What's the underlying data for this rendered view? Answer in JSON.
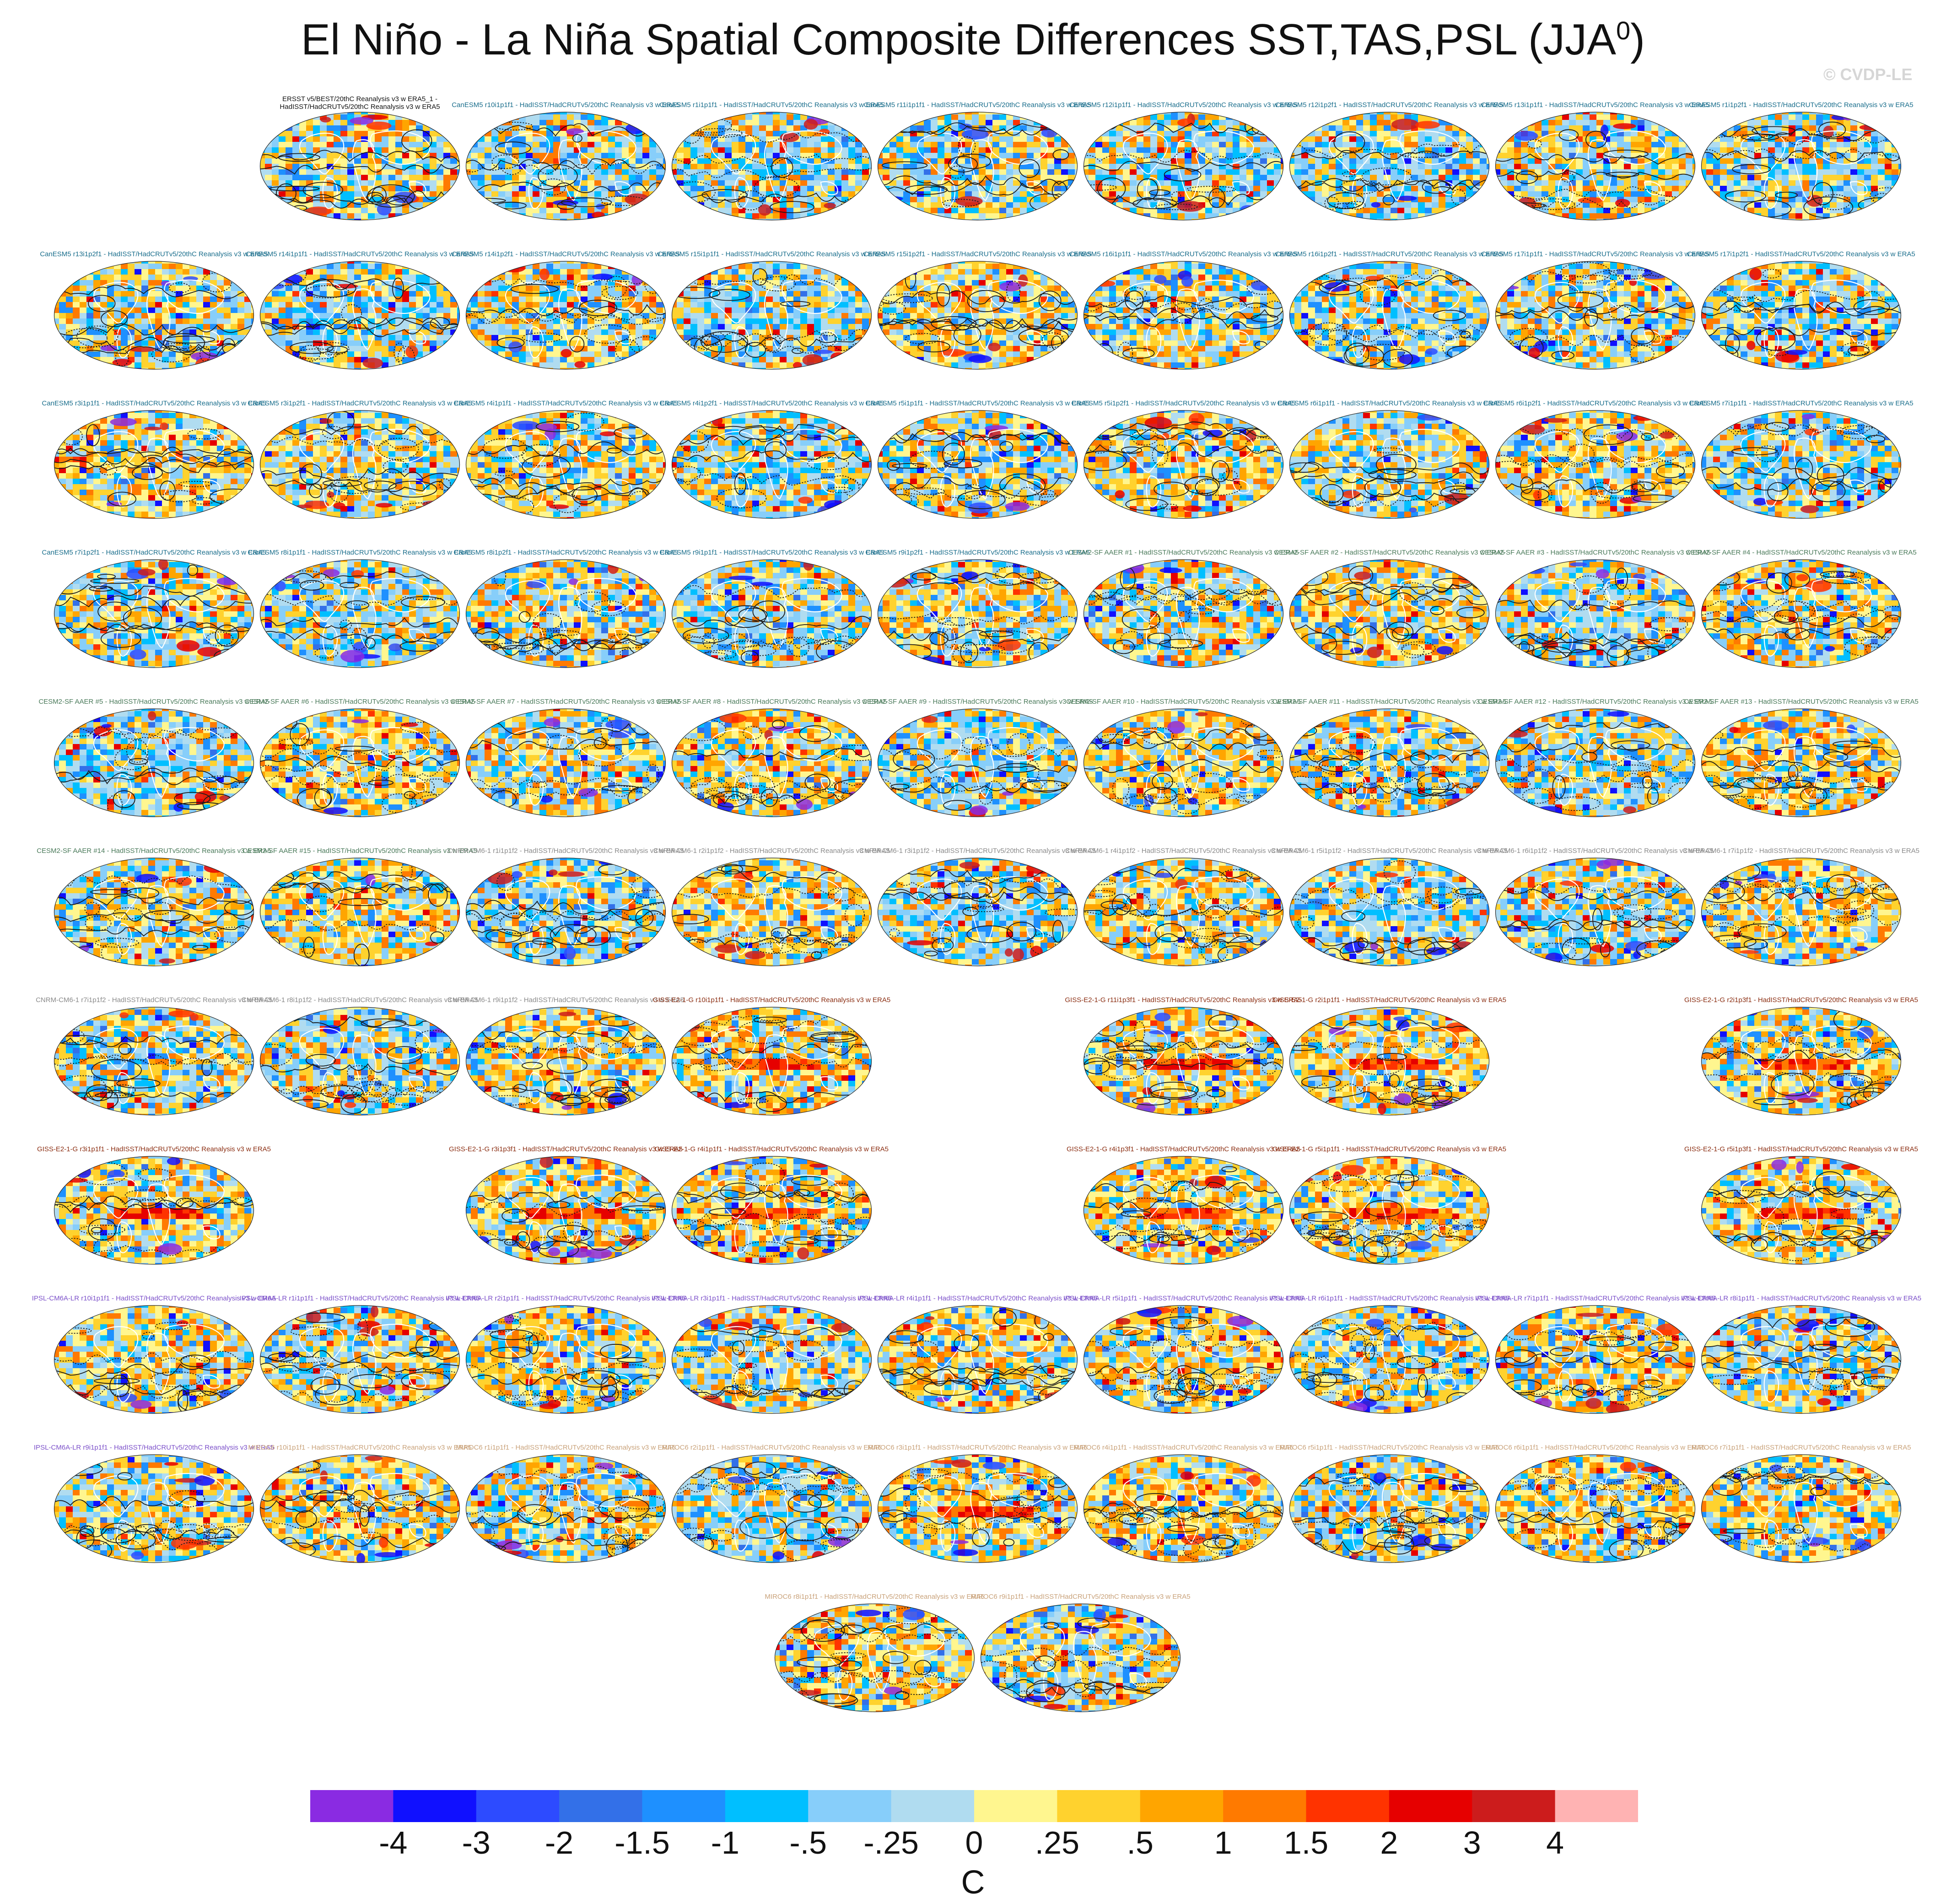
{
  "title": "El Niño - La Niña Spatial Composite Differences SST,TAS,PSL (JJA",
  "title_superscript": "0",
  "title_close": ")",
  "watermark": "© CVDP-LE",
  "chart_data": {
    "type": "heatmap",
    "projection": "robinson",
    "contours": "sea level pressure (solid positive, dashed negative)",
    "colorbar": {
      "unit": "C",
      "labels": [
        "-4",
        "-3",
        "-2",
        "-1.5",
        "-1",
        "-.5",
        "-.25",
        "0",
        ".25",
        ".5",
        "1",
        "1.5",
        "2",
        "3",
        "4"
      ],
      "colors": [
        "#8a2be2",
        "#1010ff",
        "#2d4bff",
        "#3370e8",
        "#1e90ff",
        "#00bfff",
        "#87cefa",
        "#b0dcf0",
        "#fff68f",
        "#ffd22e",
        "#ffa500",
        "#ff7a00",
        "#ff3300",
        "#e60000",
        "#cc1c1c",
        "#ffb3b3"
      ]
    },
    "panels": [
      {
        "label": "ERSST v5/BEST/20thC Reanalysis v3 w ERA5_1 -\nHadISST/HadCRUTv5/20thC Reanalysis v3 w ERA5",
        "row": 0,
        "col": 1,
        "color": "#111111",
        "tone": "obs"
      },
      {
        "label": "CanESM5 r10i1p1f1 - HadISST/HadCRUTv5/20thC Reanalysis v3 w ERA5",
        "row": 0,
        "col": 2,
        "color": "#1a6e8c",
        "tone": "cool"
      },
      {
        "label": "CanESM5 r1i1p1f1 - HadISST/HadCRUTv5/20thC Reanalysis v3 w ERA5",
        "row": 0,
        "col": 3,
        "color": "#1a6e8c",
        "tone": "cool"
      },
      {
        "label": "CanESM5 r11i1p1f1 - HadISST/HadCRUTv5/20thC Reanalysis v3 w ERA5",
        "row": 0,
        "col": 4,
        "color": "#1a6e8c",
        "tone": "mixed"
      },
      {
        "label": "CanESM5 r12i1p1f1 - HadISST/HadCRUTv5/20thC Reanalysis v3 w ERA5",
        "row": 0,
        "col": 5,
        "color": "#1a6e8c",
        "tone": "cool"
      },
      {
        "label": "CanESM5 r12i1p2f1 - HadISST/HadCRUTv5/20thC Reanalysis v3 w ERA5",
        "row": 0,
        "col": 6,
        "color": "#1a6e8c",
        "tone": "cool"
      },
      {
        "label": "CanESM5 r13i1p1f1 - HadISST/HadCRUTv5/20thC Reanalysis v3 w ERA5",
        "row": 0,
        "col": 7,
        "color": "#1a6e8c",
        "tone": "mixed"
      },
      {
        "label": "CanESM5 r1i1p2f1 - HadISST/HadCRUTv5/20thC Reanalysis v3 w ERA5",
        "row": 0,
        "col": 8,
        "color": "#1a6e8c",
        "tone": "cool"
      },
      {
        "label": "CanESM5 r13i1p2f1 - HadISST/HadCRUTv5/20thC Reanalysis v3 w ERA5",
        "row": 1,
        "col": 0,
        "color": "#1a6e8c",
        "tone": "mixed"
      },
      {
        "label": "CanESM5 r14i1p1f1 - HadISST/HadCRUTv5/20thC Reanalysis v3 w ERA5",
        "row": 1,
        "col": 1,
        "color": "#1a6e8c",
        "tone": "cool"
      },
      {
        "label": "CanESM5 r14i1p2f1 - HadISST/HadCRUTv5/20thC Reanalysis v3 w ERA5",
        "row": 1,
        "col": 2,
        "color": "#1a6e8c",
        "tone": "mixed"
      },
      {
        "label": "CanESM5 r15i1p1f1 - HadISST/HadCRUTv5/20thC Reanalysis v3 w ERA5",
        "row": 1,
        "col": 3,
        "color": "#1a6e8c",
        "tone": "cool"
      },
      {
        "label": "CanESM5 r15i1p2f1 - HadISST/HadCRUTv5/20thC Reanalysis v3 w ERA5",
        "row": 1,
        "col": 4,
        "color": "#1a6e8c",
        "tone": "warm"
      },
      {
        "label": "CanESM5 r16i1p1f1 - HadISST/HadCRUTv5/20thC Reanalysis v3 w ERA5",
        "row": 1,
        "col": 5,
        "color": "#1a6e8c",
        "tone": "mixed"
      },
      {
        "label": "CanESM5 r16i1p2f1 - HadISST/HadCRUTv5/20thC Reanalysis v3 w ERA5",
        "row": 1,
        "col": 6,
        "color": "#1a6e8c",
        "tone": "cool"
      },
      {
        "label": "CanESM5 r17i1p1f1 - HadISST/HadCRUTv5/20thC Reanalysis v3 w ERA5",
        "row": 1,
        "col": 7,
        "color": "#1a6e8c",
        "tone": "mixed"
      },
      {
        "label": "CanESM5 r17i1p2f1 - HadISST/HadCRUTv5/20thC Reanalysis v3 w ERA5",
        "row": 1,
        "col": 8,
        "color": "#1a6e8c",
        "tone": "cool"
      },
      {
        "label": "CanESM5 r3i1p1f1 - HadISST/HadCRUTv5/20thC Reanalysis v3 w ERA5",
        "row": 2,
        "col": 0,
        "color": "#1a6e8c",
        "tone": "warm"
      },
      {
        "label": "CanESM5 r3i1p2f1 - HadISST/HadCRUTv5/20thC Reanalysis v3 w ERA5",
        "row": 2,
        "col": 1,
        "color": "#1a6e8c",
        "tone": "mixed"
      },
      {
        "label": "CanESM5 r4i1p1f1 - HadISST/HadCRUTv5/20thC Reanalysis v3 w ERA5",
        "row": 2,
        "col": 2,
        "color": "#1a6e8c",
        "tone": "warm"
      },
      {
        "label": "CanESM5 r4i1p2f1 - HadISST/HadCRUTv5/20thC Reanalysis v3 w ERA5",
        "row": 2,
        "col": 3,
        "color": "#1a6e8c",
        "tone": "cool"
      },
      {
        "label": "CanESM5 r5i1p1f1 - HadISST/HadCRUTv5/20thC Reanalysis v3 w ERA5",
        "row": 2,
        "col": 4,
        "color": "#1a6e8c",
        "tone": "mixed"
      },
      {
        "label": "CanESM5 r5i1p2f1 - HadISST/HadCRUTv5/20thC Reanalysis v3 w ERA5",
        "row": 2,
        "col": 5,
        "color": "#1a6e8c",
        "tone": "warm"
      },
      {
        "label": "CanESM5 r6i1p1f1 - HadISST/HadCRUTv5/20thC Reanalysis v3 w ERA5",
        "row": 2,
        "col": 6,
        "color": "#1a6e8c",
        "tone": "mixed"
      },
      {
        "label": "CanESM5 r6i1p2f1 - HadISST/HadCRUTv5/20thC Reanalysis v3 w ERA5",
        "row": 2,
        "col": 7,
        "color": "#1a6e8c",
        "tone": "warm"
      },
      {
        "label": "CanESM5 r7i1p1f1 - HadISST/HadCRUTv5/20thC Reanalysis v3 w ERA5",
        "row": 2,
        "col": 8,
        "color": "#1a6e8c",
        "tone": "cool"
      },
      {
        "label": "CanESM5 r7i1p2f1 - HadISST/HadCRUTv5/20thC Reanalysis v3 w ERA5",
        "row": 3,
        "col": 0,
        "color": "#1a6e8c",
        "tone": "mixed"
      },
      {
        "label": "CanESM5 r8i1p1f1 - HadISST/HadCRUTv5/20thC Reanalysis v3 w ERA5",
        "row": 3,
        "col": 1,
        "color": "#1a6e8c",
        "tone": "cool"
      },
      {
        "label": "CanESM5 r8i1p2f1 - HadISST/HadCRUTv5/20thC Reanalysis v3 w ERA5",
        "row": 3,
        "col": 2,
        "color": "#1a6e8c",
        "tone": "mixed"
      },
      {
        "label": "CanESM5 r9i1p1f1 - HadISST/HadCRUTv5/20thC Reanalysis v3 w ERA5",
        "row": 3,
        "col": 3,
        "color": "#1a6e8c",
        "tone": "cool"
      },
      {
        "label": "CanESM5 r9i1p2f1 - HadISST/HadCRUTv5/20thC Reanalysis v3 w ERA5",
        "row": 3,
        "col": 4,
        "color": "#1a6e8c",
        "tone": "mixed"
      },
      {
        "label": "CESM2-SF AAER #1 - HadISST/HadCRUTv5/20thC Reanalysis v3 w ERA5",
        "row": 3,
        "col": 5,
        "color": "#4a7a5a",
        "tone": "mixed"
      },
      {
        "label": "CESM2-SF AAER #2 - HadISST/HadCRUTv5/20thC Reanalysis v3 w ERA5",
        "row": 3,
        "col": 6,
        "color": "#4a7a5a",
        "tone": "warm"
      },
      {
        "label": "CESM2-SF AAER #3 - HadISST/HadCRUTv5/20thC Reanalysis v3 w ERA5",
        "row": 3,
        "col": 7,
        "color": "#4a7a5a",
        "tone": "cool"
      },
      {
        "label": "CESM2-SF AAER #4 - HadISST/HadCRUTv5/20thC Reanalysis v3 w ERA5",
        "row": 3,
        "col": 8,
        "color": "#4a7a5a",
        "tone": "warm"
      },
      {
        "label": "CESM2-SF AAER #5 - HadISST/HadCRUTv5/20thC Reanalysis v3 w ERA5",
        "row": 4,
        "col": 0,
        "color": "#4a7a5a",
        "tone": "cool"
      },
      {
        "label": "CESM2-SF AAER #6 - HadISST/HadCRUTv5/20thC Reanalysis v3 w ERA5",
        "row": 4,
        "col": 1,
        "color": "#4a7a5a",
        "tone": "warm"
      },
      {
        "label": "CESM2-SF AAER #7 - HadISST/HadCRUTv5/20thC Reanalysis v3 w ERA5",
        "row": 4,
        "col": 2,
        "color": "#4a7a5a",
        "tone": "mixed"
      },
      {
        "label": "CESM2-SF AAER #8 - HadISST/HadCRUTv5/20thC Reanalysis v3 w ERA5",
        "row": 4,
        "col": 3,
        "color": "#4a7a5a",
        "tone": "warm"
      },
      {
        "label": "CESM2-SF AAER #9 - HadISST/HadCRUTv5/20thC Reanalysis v3 w ERA5",
        "row": 4,
        "col": 4,
        "color": "#4a7a5a",
        "tone": "cool"
      },
      {
        "label": "CESM2-SF AAER #10 - HadISST/HadCRUTv5/20thC Reanalysis v3 w ERA5",
        "row": 4,
        "col": 5,
        "color": "#4a7a5a",
        "tone": "warm"
      },
      {
        "label": "CESM2-SF AAER #11 - HadISST/HadCRUTv5/20thC Reanalysis v3 w ERA5",
        "row": 4,
        "col": 6,
        "color": "#4a7a5a",
        "tone": "mixed"
      },
      {
        "label": "CESM2-SF AAER #12 - HadISST/HadCRUTv5/20thC Reanalysis v3 w ERA5",
        "row": 4,
        "col": 7,
        "color": "#4a7a5a",
        "tone": "cool"
      },
      {
        "label": "CESM2-SF AAER #13 - HadISST/HadCRUTv5/20thC Reanalysis v3 w ERA5",
        "row": 4,
        "col": 8,
        "color": "#4a7a5a",
        "tone": "warm"
      },
      {
        "label": "CESM2-SF AAER #14 - HadISST/HadCRUTv5/20thC Reanalysis v3 w ERA5",
        "row": 5,
        "col": 0,
        "color": "#4a7a5a",
        "tone": "mixed"
      },
      {
        "label": "CESM2-SF AAER #15 - HadISST/HadCRUTv5/20thC Reanalysis v3 w ERA5",
        "row": 5,
        "col": 1,
        "color": "#4a7a5a",
        "tone": "warm"
      },
      {
        "label": "CNRM-CM6-1 r1i1p1f2 - HadISST/HadCRUTv5/20thC Reanalysis v3 w ERA5",
        "row": 5,
        "col": 2,
        "color": "#8a8a8a",
        "tone": "cool"
      },
      {
        "label": "CNRM-CM6-1 r2i1p1f2 - HadISST/HadCRUTv5/20thC Reanalysis v3 w ERA5",
        "row": 5,
        "col": 3,
        "color": "#8a8a8a",
        "tone": "warm"
      },
      {
        "label": "CNRM-CM6-1 r3i1p1f2 - HadISST/HadCRUTv5/20thC Reanalysis v3 w ERA5",
        "row": 5,
        "col": 4,
        "color": "#8a8a8a",
        "tone": "cool"
      },
      {
        "label": "CNRM-CM6-1 r4i1p1f2 - HadISST/HadCRUTv5/20thC Reanalysis v3 w ERA5",
        "row": 5,
        "col": 5,
        "color": "#8a8a8a",
        "tone": "warm"
      },
      {
        "label": "CNRM-CM6-1 r5i1p1f2 - HadISST/HadCRUTv5/20thC Reanalysis v3 w ERA5",
        "row": 5,
        "col": 6,
        "color": "#8a8a8a",
        "tone": "cool"
      },
      {
        "label": "CNRM-CM6-1 r6i1p1f2 - HadISST/HadCRUTv5/20thC Reanalysis v3 w ERA5",
        "row": 5,
        "col": 7,
        "color": "#8a8a8a",
        "tone": "cool"
      },
      {
        "label": "CNRM-CM6-1 r7i1p1f2 - HadISST/HadCRUTv5/20thC Reanalysis v3 w ERA5",
        "row": 5,
        "col": 8,
        "color": "#8a8a8a",
        "tone": "warm"
      },
      {
        "label": "CNRM-CM6-1 r7i1p1f2 - HadISST/HadCRUTv5/20thC Reanalysis v3 w ERA5",
        "row": 6,
        "col": 0,
        "color": "#8a8a8a",
        "tone": "mixed"
      },
      {
        "label": "CNRM-CM6-1 r8i1p1f2 - HadISST/HadCRUTv5/20thC Reanalysis v3 w ERA5",
        "row": 6,
        "col": 1,
        "color": "#8a8a8a",
        "tone": "cool"
      },
      {
        "label": "CNRM-CM6-1 r9i1p1f2 - HadISST/HadCRUTv5/20thC Reanalysis v3 w ERA5",
        "row": 6,
        "col": 2,
        "color": "#8a8a8a",
        "tone": "warm"
      },
      {
        "label": "GISS-E2-1-G r10i1p1f1 - HadISST/HadCRUTv5/20thC Reanalysis v3 w ERA5",
        "row": 6,
        "col": 3,
        "color": "#8b2e12",
        "tone": "nino"
      },
      {
        "label": "GISS-E2-1-G r11i1p3f1 - HadISST/HadCRUTv5/20thC Reanalysis v3 w ERA5",
        "row": 6,
        "col": 5,
        "color": "#8b2e12",
        "tone": "nino"
      },
      {
        "label": "GISS-E2-1-G r2i1p1f1 - HadISST/HadCRUTv5/20thC Reanalysis v3 w ERA5",
        "row": 6,
        "col": 6,
        "color": "#8b2e12",
        "tone": "nino"
      },
      {
        "label": "GISS-E2-1-G r2i1p3f1 - HadISST/HadCRUTv5/20thC Reanalysis v3 w ERA5",
        "row": 6,
        "col": 8,
        "color": "#8b2e12",
        "tone": "nino"
      },
      {
        "label": "GISS-E2-1-G r3i1p1f1 - HadISST/HadCRUTv5/20thC Reanalysis v3 w ERA5",
        "row": 7,
        "col": 0,
        "color": "#8b2e12",
        "tone": "nino"
      },
      {
        "label": "GISS-E2-1-G r3i1p3f1 - HadISST/HadCRUTv5/20thC Reanalysis v3 w ERA5",
        "row": 7,
        "col": 2,
        "color": "#8b2e12",
        "tone": "nino"
      },
      {
        "label": "GISS-E2-1-G r4i1p1f1 - HadISST/HadCRUTv5/20thC Reanalysis v3 w ERA5",
        "row": 7,
        "col": 3,
        "color": "#8b2e12",
        "tone": "nino"
      },
      {
        "label": "GISS-E2-1-G r4i1p3f1 - HadISST/HadCRUTv5/20thC Reanalysis v3 w ERA5",
        "row": 7,
        "col": 5,
        "color": "#8b2e12",
        "tone": "nino"
      },
      {
        "label": "GISS-E2-1-G r5i1p1f1 - HadISST/HadCRUTv5/20thC Reanalysis v3 w ERA5",
        "row": 7,
        "col": 6,
        "color": "#8b2e12",
        "tone": "nino"
      },
      {
        "label": "GISS-E2-1-G r5i1p3f1 - HadISST/HadCRUTv5/20thC Reanalysis v3 w ERA5",
        "row": 7,
        "col": 8,
        "color": "#8b2e12",
        "tone": "nino"
      },
      {
        "label": "IPSL-CM6A-LR r10i1p1f1 - HadISST/HadCRUTv5/20thC Reanalysis v3 w ERA5",
        "row": 8,
        "col": 0,
        "color": "#7b4fc9",
        "tone": "warm"
      },
      {
        "label": "IPSL-CM6A-LR r1i1p1f1 - HadISST/HadCRUTv5/20thC Reanalysis v3 w ERA5",
        "row": 8,
        "col": 1,
        "color": "#7b4fc9",
        "tone": "mixed"
      },
      {
        "label": "IPSL-CM6A-LR r2i1p1f1 - HadISST/HadCRUTv5/20thC Reanalysis v3 w ERA5",
        "row": 8,
        "col": 2,
        "color": "#7b4fc9",
        "tone": "warm"
      },
      {
        "label": "IPSL-CM6A-LR r3i1p1f1 - HadISST/HadCRUTv5/20thC Reanalysis v3 w ERA5",
        "row": 8,
        "col": 3,
        "color": "#7b4fc9",
        "tone": "mixed"
      },
      {
        "label": "IPSL-CM6A-LR r4i1p1f1 - HadISST/HadCRUTv5/20thC Reanalysis v3 w ERA5",
        "row": 8,
        "col": 4,
        "color": "#7b4fc9",
        "tone": "warm"
      },
      {
        "label": "IPSL-CM6A-LR r5i1p1f1 - HadISST/HadCRUTv5/20thC Reanalysis v3 w ERA5",
        "row": 8,
        "col": 5,
        "color": "#7b4fc9",
        "tone": "warm"
      },
      {
        "label": "IPSL-CM6A-LR r6i1p1f1 - HadISST/HadCRUTv5/20thC Reanalysis v3 w ERA5",
        "row": 8,
        "col": 6,
        "color": "#7b4fc9",
        "tone": "mixed"
      },
      {
        "label": "IPSL-CM6A-LR r7i1p1f1 - HadISST/HadCRUTv5/20thC Reanalysis v3 w ERA5",
        "row": 8,
        "col": 7,
        "color": "#7b4fc9",
        "tone": "warm"
      },
      {
        "label": "IPSL-CM6A-LR r8i1p1f1 - HadISST/HadCRUTv5/20thC Reanalysis v3 w ERA5",
        "row": 8,
        "col": 8,
        "color": "#7b4fc9",
        "tone": "mixed"
      },
      {
        "label": "IPSL-CM6A-LR r9i1p1f1 - HadISST/HadCRUTv5/20thC Reanalysis v3 w ERA5",
        "row": 9,
        "col": 0,
        "color": "#7b4fc9",
        "tone": "mixed"
      },
      {
        "label": "MIROC6 r10i1p1f1 - HadISST/HadCRUTv5/20thC Reanalysis v3 w ERA5",
        "row": 9,
        "col": 1,
        "color": "#c9a27a",
        "tone": "warm"
      },
      {
        "label": "MIROC6 r1i1p1f1 - HadISST/HadCRUTv5/20thC Reanalysis v3 w ERA5",
        "row": 9,
        "col": 2,
        "color": "#c9a27a",
        "tone": "mixed"
      },
      {
        "label": "MIROC6 r2i1p1f1 - HadISST/HadCRUTv5/20thC Reanalysis v3 w ERA5",
        "row": 9,
        "col": 3,
        "color": "#c9a27a",
        "tone": "cool"
      },
      {
        "label": "MIROC6 r3i1p1f1 - HadISST/HadCRUTv5/20thC Reanalysis v3 w ERA5",
        "row": 9,
        "col": 4,
        "color": "#c9a27a",
        "tone": "nino"
      },
      {
        "label": "MIROC6 r4i1p1f1 - HadISST/HadCRUTv5/20thC Reanalysis v3 w ERA5",
        "row": 9,
        "col": 5,
        "color": "#c9a27a",
        "tone": "warm"
      },
      {
        "label": "MIROC6 r5i1p1f1 - HadISST/HadCRUTv5/20thC Reanalysis v3 w ERA5",
        "row": 9,
        "col": 6,
        "color": "#c9a27a",
        "tone": "mixed"
      },
      {
        "label": "MIROC6 r6i1p1f1 - HadISST/HadCRUTv5/20thC Reanalysis v3 w ERA5",
        "row": 9,
        "col": 7,
        "color": "#c9a27a",
        "tone": "warm"
      },
      {
        "label": "MIROC6 r7i1p1f1 - HadISST/HadCRUTv5/20thC Reanalysis v3 w ERA5",
        "row": 9,
        "col": 8,
        "color": "#c9a27a",
        "tone": "warm"
      },
      {
        "label": "MIROC6 r8i1p1f1 - HadISST/HadCRUTv5/20thC Reanalysis v3 w ERA5",
        "row": 10,
        "col": 3.5,
        "color": "#c9a27a",
        "tone": "warm"
      },
      {
        "label": "MIROC6 r9i1p1f1 - HadISST/HadCRUTv5/20thC Reanalysis v3 w ERA5",
        "row": 10,
        "col": 4.5,
        "color": "#c9a27a",
        "tone": "mixed"
      }
    ]
  }
}
